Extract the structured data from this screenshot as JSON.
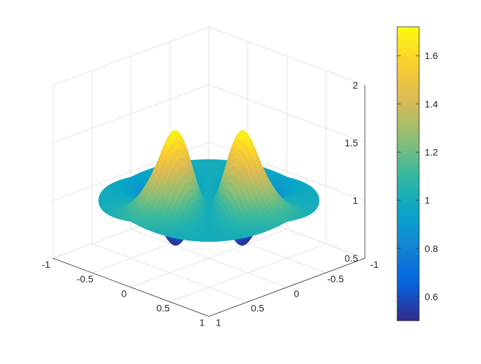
{
  "chart_data": {
    "type": "surface",
    "title": "",
    "xlabel": "",
    "ylabel": "",
    "zlabel": "",
    "xlim": [
      -1,
      1
    ],
    "ylim": [
      -1,
      1
    ],
    "zlim": [
      0.5,
      2
    ],
    "grid": true,
    "view": "3d-isometric",
    "x_ticks": [
      "-1",
      "-0.5",
      "0",
      "0.5",
      "1"
    ],
    "y_ticks": [
      "-1",
      "-0.5",
      "0",
      "0.5",
      "1"
    ],
    "z_ticks": [
      "0.5",
      "1",
      "1.5",
      "2"
    ],
    "surface": {
      "domain": "unit disk",
      "base_level": 1.0,
      "peaks": [
        {
          "x": 0.45,
          "y": 0.0,
          "z": 1.72
        },
        {
          "x": 0.0,
          "y": 0.45,
          "z": 1.72
        }
      ],
      "troughs": [
        {
          "x": -0.45,
          "y": 0.0,
          "z": 0.5
        },
        {
          "x": 0.0,
          "y": -0.45,
          "z": 0.5
        }
      ],
      "center_saddle": {
        "x": 0,
        "y": 0,
        "z": 1.0
      },
      "z_range": [
        0.5,
        1.72
      ]
    },
    "colorbar": {
      "colormap": "parula",
      "range": [
        0.5,
        1.72
      ],
      "ticks": [
        "0.6",
        "0.8",
        "1",
        "1.2",
        "1.4",
        "1.6"
      ],
      "location": "right"
    }
  }
}
